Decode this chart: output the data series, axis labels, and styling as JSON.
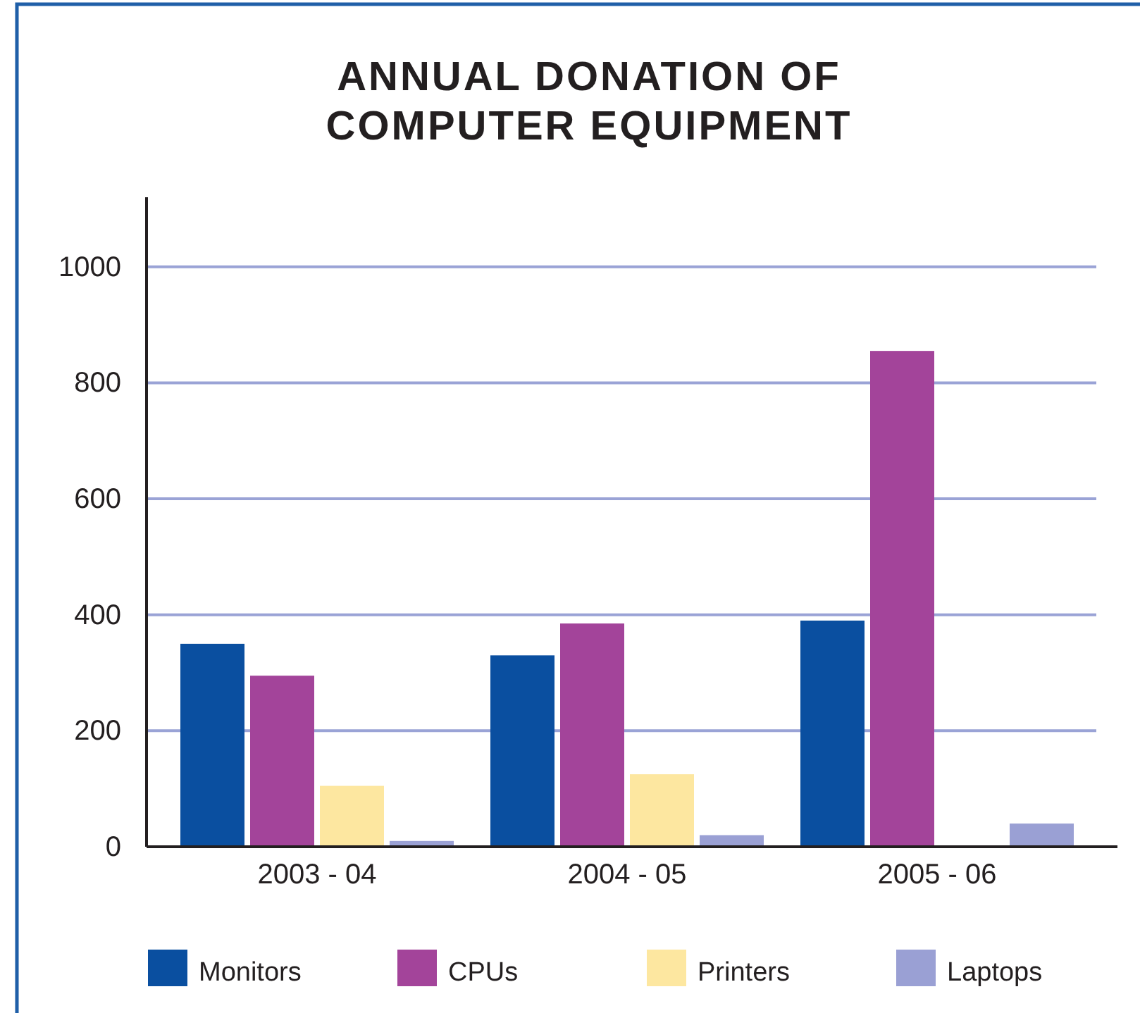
{
  "chart_data": {
    "type": "bar",
    "title": "ANNUAL DONATION OF COMPUTER EQUIPMENT",
    "categories": [
      "2003 - 04",
      "2004 - 05",
      "2005 - 06"
    ],
    "series": [
      {
        "name": "Monitors",
        "color": "#0a4fa0",
        "values": [
          350,
          330,
          390
        ]
      },
      {
        "name": "CPUs",
        "color": "#a3449a",
        "values": [
          295,
          385,
          855
        ]
      },
      {
        "name": "Printers",
        "color": "#fde7a0",
        "values": [
          105,
          125,
          0
        ]
      },
      {
        "name": "Laptops",
        "color": "#9aa0d4",
        "values": [
          10,
          20,
          40
        ]
      }
    ],
    "ylim": [
      0,
      1120
    ],
    "yticks": [
      0,
      200,
      400,
      600,
      800,
      1000
    ],
    "grid": "y",
    "legend": "bottom"
  }
}
